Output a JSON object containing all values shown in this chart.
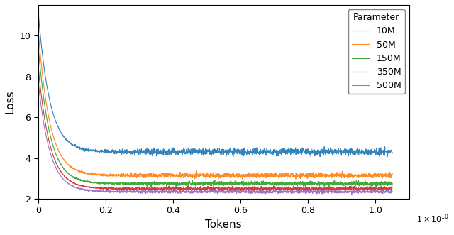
{
  "title": "",
  "xlabel": "Tokens",
  "ylabel": "Loss",
  "xlim": [
    0,
    11000000000.0
  ],
  "ylim": [
    2,
    11.5
  ],
  "series": [
    {
      "label": "10M",
      "color": "#1f77b4",
      "init_loss": 11.2,
      "final_loss": 4.3,
      "noise_scale": 0.08,
      "tokens": 10500000000.0
    },
    {
      "label": "50M",
      "color": "#ff7f0e",
      "init_loss": 10.3,
      "final_loss": 3.15,
      "noise_scale": 0.06,
      "tokens": 10500000000.0
    },
    {
      "label": "150M",
      "color": "#2ca02c",
      "init_loss": 9.5,
      "final_loss": 2.75,
      "noise_scale": 0.05,
      "tokens": 10500000000.0
    },
    {
      "label": "350M",
      "color": "#d62728",
      "init_loss": 8.5,
      "final_loss": 2.5,
      "noise_scale": 0.045,
      "tokens": 10500000000.0
    },
    {
      "label": "500M",
      "color": "#9467bd",
      "init_loss": 7.8,
      "final_loss": 2.35,
      "noise_scale": 0.04,
      "tokens": 10500000000.0
    }
  ],
  "legend_title": "Parameter",
  "n_points": 2000,
  "background_color": "#ffffff",
  "xtick_labels": [
    "0",
    "0.2",
    "0.4",
    "0.6",
    "0.8",
    "1.0"
  ],
  "xtick_positions": [
    0,
    2000000000,
    4000000000,
    6000000000,
    8000000000,
    10000000000
  ],
  "ytick_labels": [
    "2",
    "4",
    "6",
    "8",
    "10"
  ],
  "ytick_positions": [
    2,
    4,
    6,
    8,
    10
  ]
}
